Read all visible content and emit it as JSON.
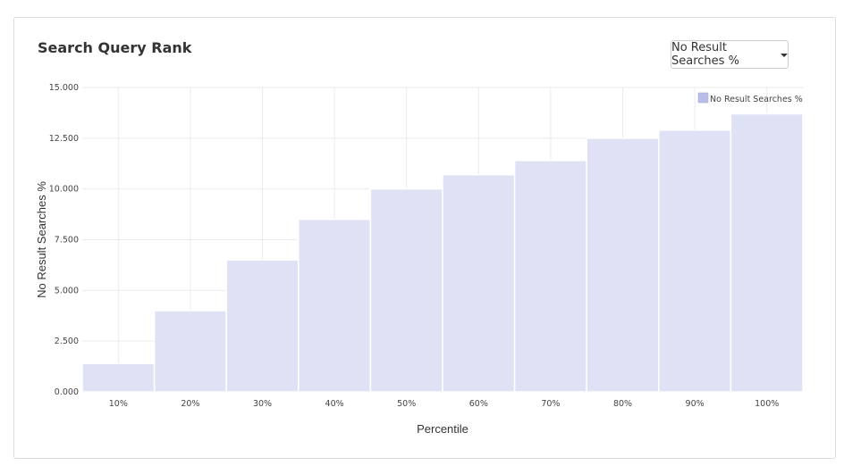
{
  "card": {
    "title": "Search Query Rank",
    "dropdown_label": "No Result Searches %"
  },
  "colors": {
    "bar_fill": "#dfe1f4",
    "legend_swatch": "#b9bde8",
    "grid": "#ebebeb"
  },
  "chart_data": {
    "type": "bar",
    "categories": [
      "10%",
      "20%",
      "30%",
      "40%",
      "50%",
      "60%",
      "70%",
      "80%",
      "90%",
      "100%"
    ],
    "series": [
      {
        "name": "No Result Searches %",
        "values": [
          1.4,
          4.0,
          6.5,
          8.5,
          10.0,
          10.7,
          11.4,
          12.5,
          12.9,
          13.7
        ]
      }
    ],
    "xlabel": "Percentile",
    "ylabel": "No Result Searches %",
    "ylim": [
      0,
      15
    ],
    "yticks": [
      "0.000",
      "2.500",
      "5.000",
      "7.500",
      "10.000",
      "12.500",
      "15.000"
    ],
    "grid": true,
    "legend_position": "top-right"
  }
}
